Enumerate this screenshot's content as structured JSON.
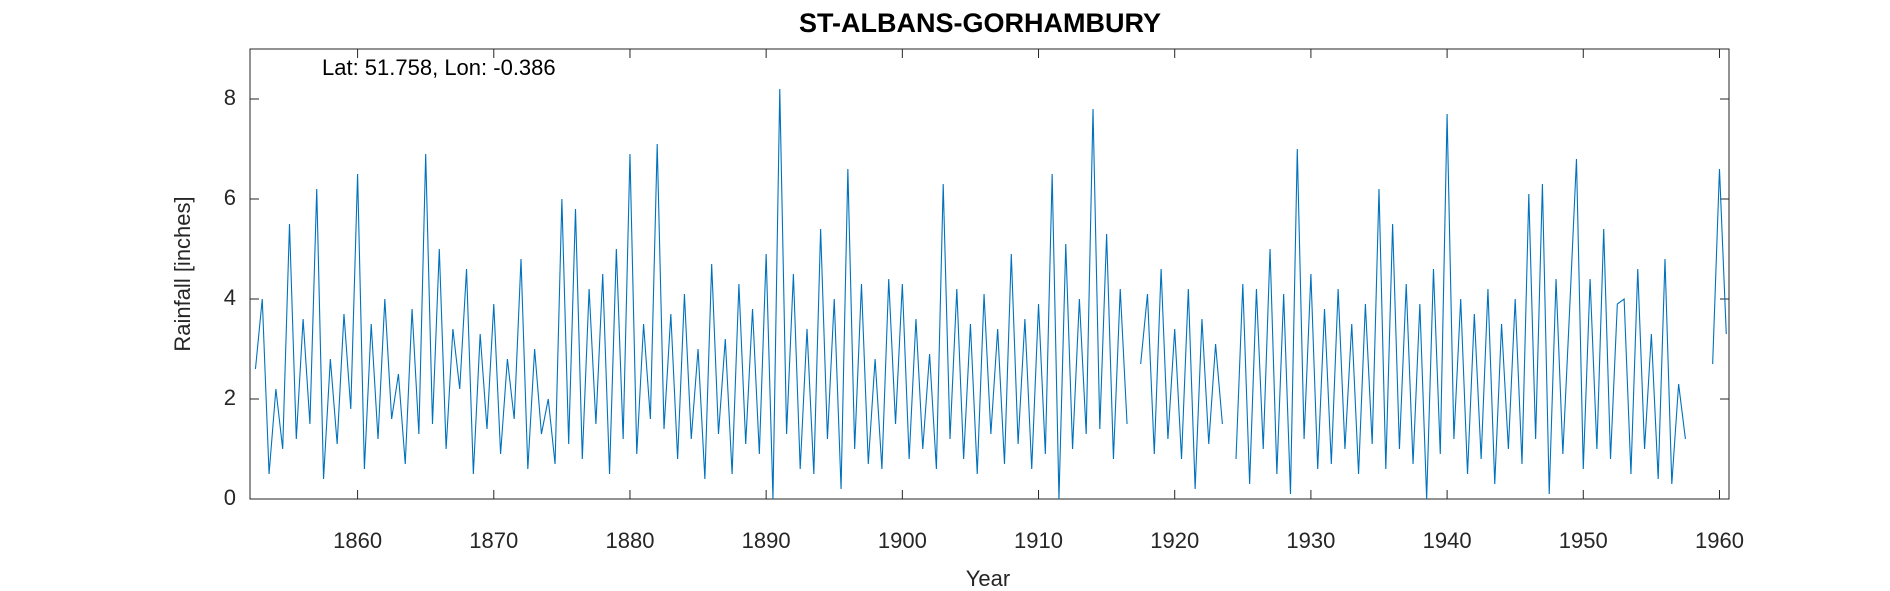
{
  "chart_data": {
    "type": "line",
    "title": "ST-ALBANS-GORHAMBURY",
    "annotation": "Lat: 51.758, Lon: -0.386",
    "x_label": "Year",
    "y_label": "Rainfall [inches]",
    "xlim": [
      1852.1,
      1960.7
    ],
    "ylim": [
      0,
      9
    ],
    "xticks": [
      1860,
      1870,
      1880,
      1890,
      1900,
      1910,
      1920,
      1930,
      1940,
      1950,
      1960
    ],
    "yticks": [
      0,
      2,
      4,
      6,
      8
    ],
    "grid": false,
    "x": [
      1852.5,
      1853,
      1853.5,
      1854,
      1854.5,
      1855,
      1855.5,
      1856,
      1856.5,
      1857,
      1857.5,
      1858,
      1858.5,
      1859,
      1859.5,
      1860,
      1860.5,
      1861,
      1861.5,
      1862,
      1862.5,
      1863,
      1863.5,
      1864,
      1864.5,
      1865,
      1865.5,
      1866,
      1866.5,
      1867,
      1867.5,
      1868,
      1868.5,
      1869,
      1869.5,
      1870,
      1870.5,
      1871,
      1871.5,
      1872,
      1872.5,
      1873,
      1873.5,
      1874,
      1874.5,
      1875,
      1875.5,
      1876,
      1876.5,
      1877,
      1877.5,
      1878,
      1878.5,
      1879,
      1879.5,
      1880,
      1880.5,
      1881,
      1881.5,
      1882,
      1882.5,
      1883,
      1883.5,
      1884,
      1884.5,
      1885,
      1885.5,
      1886,
      1886.5,
      1887,
      1887.5,
      1888,
      1888.5,
      1889,
      1889.5,
      1890,
      1890.5,
      1891,
      1891.5,
      1892,
      1892.5,
      1893,
      1893.5,
      1894,
      1894.5,
      1895,
      1895.5,
      1896,
      1896.5,
      1897,
      1897.5,
      1898,
      1898.5,
      1899,
      1899.5,
      1900,
      1900.5,
      1901,
      1901.5,
      1902,
      1902.5,
      1903,
      1903.5,
      1904,
      1904.5,
      1905,
      1905.5,
      1906,
      1906.5,
      1907,
      1907.5,
      1908,
      1908.5,
      1909,
      1909.5,
      1910,
      1910.5,
      1911,
      1911.5,
      1912,
      1912.5,
      1913,
      1913.5,
      1914,
      1914.5,
      1915,
      1915.5,
      1916,
      1916.5,
      1917,
      1917.5,
      1918,
      1918.5,
      1919,
      1919.5,
      1920,
      1920.5,
      1921,
      1921.5,
      1922,
      1922.5,
      1923,
      1923.5,
      1924,
      1924.5,
      1925,
      1925.5,
      1926,
      1926.5,
      1927,
      1927.5,
      1928,
      1928.5,
      1929,
      1929.5,
      1930,
      1930.5,
      1931,
      1931.5,
      1932,
      1932.5,
      1933,
      1933.5,
      1934,
      1934.5,
      1935,
      1935.5,
      1936,
      1936.5,
      1937,
      1937.5,
      1938,
      1938.5,
      1939,
      1939.5,
      1940,
      1940.5,
      1941,
      1941.5,
      1942,
      1942.5,
      1943,
      1943.5,
      1944,
      1944.5,
      1945,
      1945.5,
      1946,
      1946.5,
      1947,
      1947.5,
      1948,
      1948.5,
      1949,
      1949.5,
      1950,
      1950.5,
      1951,
      1951.5,
      1952,
      1952.5,
      1953,
      1953.5,
      1954,
      1954.5,
      1955,
      1955.5,
      1956,
      1956.5,
      1957,
      1957.5,
      1958,
      1958.5,
      1959,
      1959.5,
      1960,
      1960.5
    ],
    "series": [
      {
        "name": "Rainfall",
        "color": "#0072bd",
        "values": [
          2.6,
          4.0,
          0.5,
          2.2,
          1.0,
          5.5,
          1.2,
          3.6,
          1.5,
          6.2,
          0.4,
          2.8,
          1.1,
          3.7,
          1.8,
          6.5,
          0.6,
          3.5,
          1.2,
          4.0,
          1.6,
          2.5,
          0.7,
          3.8,
          1.3,
          6.9,
          1.5,
          5.0,
          1.0,
          3.4,
          2.2,
          4.6,
          0.5,
          3.3,
          1.4,
          3.9,
          0.9,
          2.8,
          1.6,
          4.8,
          0.6,
          3.0,
          1.3,
          2.0,
          0.7,
          6.0,
          1.1,
          5.8,
          0.8,
          4.2,
          1.5,
          4.5,
          0.5,
          5.0,
          1.2,
          6.9,
          0.9,
          3.5,
          1.6,
          7.1,
          1.4,
          3.7,
          0.8,
          4.1,
          1.2,
          3.0,
          0.4,
          4.7,
          1.3,
          3.2,
          0.5,
          4.3,
          1.1,
          3.8,
          0.9,
          4.9,
          0.0,
          8.2,
          1.3,
          4.5,
          0.6,
          3.4,
          0.5,
          5.4,
          1.2,
          4.0,
          0.2,
          6.6,
          1.0,
          4.3,
          0.7,
          2.8,
          0.6,
          4.4,
          1.5,
          4.3,
          0.8,
          3.6,
          1.0,
          2.9,
          0.6,
          6.3,
          1.2,
          4.2,
          0.8,
          3.5,
          0.5,
          4.1,
          1.3,
          3.4,
          0.7,
          4.9,
          1.1,
          3.6,
          0.6,
          3.9,
          0.9,
          6.5,
          0.0,
          5.1,
          1.0,
          4.0,
          1.3,
          7.8,
          1.4,
          5.3,
          0.8,
          4.2,
          1.5,
          null,
          2.7,
          4.1,
          0.9,
          4.6,
          1.2,
          3.4,
          0.8,
          4.2,
          0.2,
          3.6,
          1.1,
          3.1,
          1.5,
          null,
          0.8,
          4.3,
          0.3,
          4.2,
          1.0,
          5.0,
          0.5,
          4.1,
          0.1,
          7.0,
          1.2,
          4.5,
          0.6,
          3.8,
          0.7,
          4.2,
          1.0,
          3.5,
          0.5,
          3.9,
          1.1,
          6.2,
          0.6,
          5.5,
          1.0,
          4.3,
          0.7,
          3.9,
          0.0,
          4.6,
          0.9,
          7.7,
          1.2,
          4.0,
          0.5,
          3.7,
          0.8,
          4.2,
          0.3,
          3.5,
          1.0,
          4.0,
          0.7,
          6.1,
          1.2,
          6.3,
          0.1,
          4.4,
          0.9,
          3.8,
          6.8,
          0.6,
          4.4,
          1.0,
          5.4,
          0.8,
          3.9,
          4.0,
          0.5,
          4.6,
          1.0,
          3.3,
          0.4,
          4.8,
          0.3,
          2.3,
          1.2,
          null,
          null,
          null,
          2.7,
          6.6,
          3.3
        ]
      }
    ]
  }
}
